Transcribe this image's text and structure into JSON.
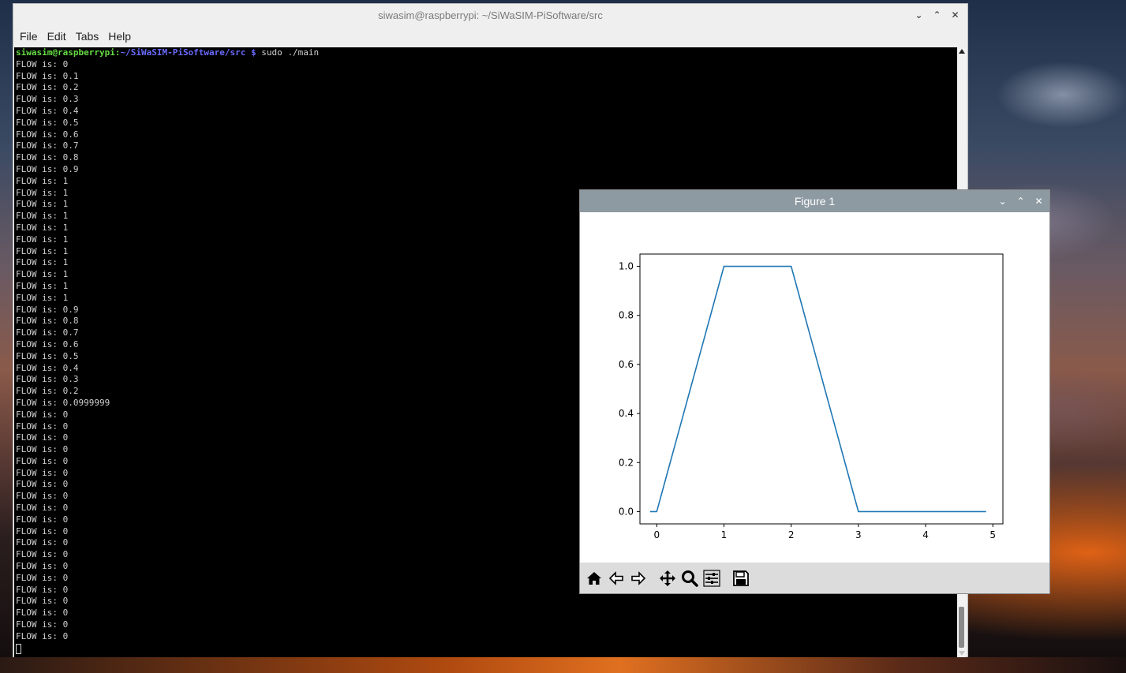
{
  "terminal": {
    "title": "siwasim@raspberrypi: ~/SiWaSIM-PiSoftware/src",
    "menu": [
      "File",
      "Edit",
      "Tabs",
      "Help"
    ],
    "prompt_user": "siwasim@raspberrypi",
    "prompt_sep": ":",
    "prompt_path": "~/SiWaSIM-PiSoftware/src",
    "prompt_dollar": " $",
    "command": " sudo ./main",
    "output_lines": [
      "FLOW is: 0",
      "FLOW is: 0.1",
      "FLOW is: 0.2",
      "FLOW is: 0.3",
      "FLOW is: 0.4",
      "FLOW is: 0.5",
      "FLOW is: 0.6",
      "FLOW is: 0.7",
      "FLOW is: 0.8",
      "FLOW is: 0.9",
      "FLOW is: 1",
      "FLOW is: 1",
      "FLOW is: 1",
      "FLOW is: 1",
      "FLOW is: 1",
      "FLOW is: 1",
      "FLOW is: 1",
      "FLOW is: 1",
      "FLOW is: 1",
      "FLOW is: 1",
      "FLOW is: 1",
      "FLOW is: 0.9",
      "FLOW is: 0.8",
      "FLOW is: 0.7",
      "FLOW is: 0.6",
      "FLOW is: 0.5",
      "FLOW is: 0.4",
      "FLOW is: 0.3",
      "FLOW is: 0.2",
      "FLOW is: 0.0999999",
      "FLOW is: 0",
      "FLOW is: 0",
      "FLOW is: 0",
      "FLOW is: 0",
      "FLOW is: 0",
      "FLOW is: 0",
      "FLOW is: 0",
      "FLOW is: 0",
      "FLOW is: 0",
      "FLOW is: 0",
      "FLOW is: 0",
      "FLOW is: 0",
      "FLOW is: 0",
      "FLOW is: 0",
      "FLOW is: 0",
      "FLOW is: 0",
      "FLOW is: 0",
      "FLOW is: 0",
      "FLOW is: 0",
      "FLOW is: 0"
    ],
    "window_controls": {
      "minimize": "⌄",
      "maximize": "⌃",
      "close": "✕"
    }
  },
  "figure": {
    "title": "Figure 1",
    "window_controls": {
      "minimize": "⌄",
      "maximize": "⌃",
      "close": "✕"
    },
    "toolbar": [
      {
        "name": "home-icon",
        "glyph": "home"
      },
      {
        "name": "back-icon",
        "glyph": "back"
      },
      {
        "name": "forward-icon",
        "glyph": "forward"
      },
      {
        "name": "pan-icon",
        "glyph": "pan"
      },
      {
        "name": "zoom-icon",
        "glyph": "zoom"
      },
      {
        "name": "configure-subplots-icon",
        "glyph": "configure"
      },
      {
        "name": "save-icon",
        "glyph": "save"
      }
    ]
  },
  "chart_data": {
    "type": "line",
    "title": "",
    "xlabel": "",
    "ylabel": "",
    "xlim": [
      -0.25,
      5.15
    ],
    "ylim": [
      -0.05,
      1.05
    ],
    "xticks": [
      0,
      1,
      2,
      3,
      4,
      5
    ],
    "yticks": [
      0.0,
      0.2,
      0.4,
      0.6,
      0.8,
      1.0
    ],
    "ytick_labels": [
      "0.0",
      "0.2",
      "0.4",
      "0.6",
      "0.8",
      "1.0"
    ],
    "xtick_labels": [
      "0",
      "1",
      "2",
      "3",
      "4",
      "5"
    ],
    "line_color": "#1f77b4",
    "series": [
      {
        "x": [
          -0.1,
          0.0,
          0.1,
          0.2,
          0.3,
          0.4,
          0.5,
          0.6,
          0.7,
          0.8,
          0.9,
          1.0,
          1.1,
          1.2,
          1.3,
          1.4,
          1.5,
          1.6,
          1.7,
          1.8,
          1.9,
          2.0,
          2.1,
          2.2,
          2.3,
          2.4,
          2.5,
          2.6,
          2.7,
          2.8,
          2.9,
          3.0,
          3.1,
          3.2,
          3.3,
          3.4,
          3.5,
          3.6,
          3.7,
          3.8,
          3.9,
          4.0,
          4.1,
          4.2,
          4.3,
          4.4,
          4.5,
          4.6,
          4.7,
          4.8,
          4.9
        ],
        "y": [
          0,
          0,
          0.1,
          0.2,
          0.3,
          0.4,
          0.5,
          0.6,
          0.7,
          0.8,
          0.9,
          1,
          1,
          1,
          1,
          1,
          1,
          1,
          1,
          1,
          1,
          1,
          0.9,
          0.8,
          0.7,
          0.6,
          0.5,
          0.4,
          0.3,
          0.2,
          0.0999999,
          0,
          0,
          0,
          0,
          0,
          0,
          0,
          0,
          0,
          0,
          0,
          0,
          0,
          0,
          0,
          0,
          0,
          0,
          0,
          0
        ]
      }
    ]
  }
}
